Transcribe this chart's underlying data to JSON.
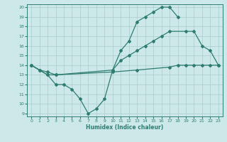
{
  "line1_x": [
    0,
    2,
    3,
    4,
    5,
    6,
    7,
    8,
    9,
    10,
    11,
    12,
    13,
    14,
    15,
    16,
    17,
    18
  ],
  "line1_y": [
    14,
    13,
    12,
    12,
    11.5,
    10.5,
    9,
    9.5,
    10.5,
    13.5,
    15.5,
    16.5,
    18.5,
    19,
    19.5,
    20,
    20,
    19
  ],
  "line2_x": [
    0,
    1,
    2,
    3,
    10,
    11,
    12,
    13,
    14,
    15,
    16,
    17,
    19,
    20,
    21,
    22,
    23
  ],
  "line2_y": [
    14,
    13.5,
    13,
    13,
    13.5,
    14.5,
    15,
    15.5,
    16,
    16.5,
    17,
    17.5,
    17.5,
    17.5,
    16,
    15.5,
    14
  ],
  "line3_x": [
    0,
    1,
    2,
    3,
    10,
    13,
    17,
    18,
    19,
    20,
    21,
    22,
    23
  ],
  "line3_y": [
    14,
    13.5,
    13.3,
    13,
    13.3,
    13.5,
    13.8,
    14,
    14,
    14,
    14,
    14,
    14
  ],
  "line_color": "#2e7d6e",
  "bg_color": "#cce8e8",
  "grid_color": "#aacccc",
  "xlabel": "Humidex (Indice chaleur)",
  "xlim": [
    -0.5,
    23.5
  ],
  "ylim": [
    8.7,
    20.3
  ],
  "xticks": [
    0,
    1,
    2,
    3,
    4,
    5,
    6,
    7,
    8,
    9,
    10,
    11,
    12,
    13,
    14,
    15,
    16,
    17,
    18,
    19,
    20,
    21,
    22,
    23
  ],
  "yticks": [
    9,
    10,
    11,
    12,
    13,
    14,
    15,
    16,
    17,
    18,
    19,
    20
  ],
  "marker": "D",
  "markersize": 2.0,
  "linewidth": 0.9
}
